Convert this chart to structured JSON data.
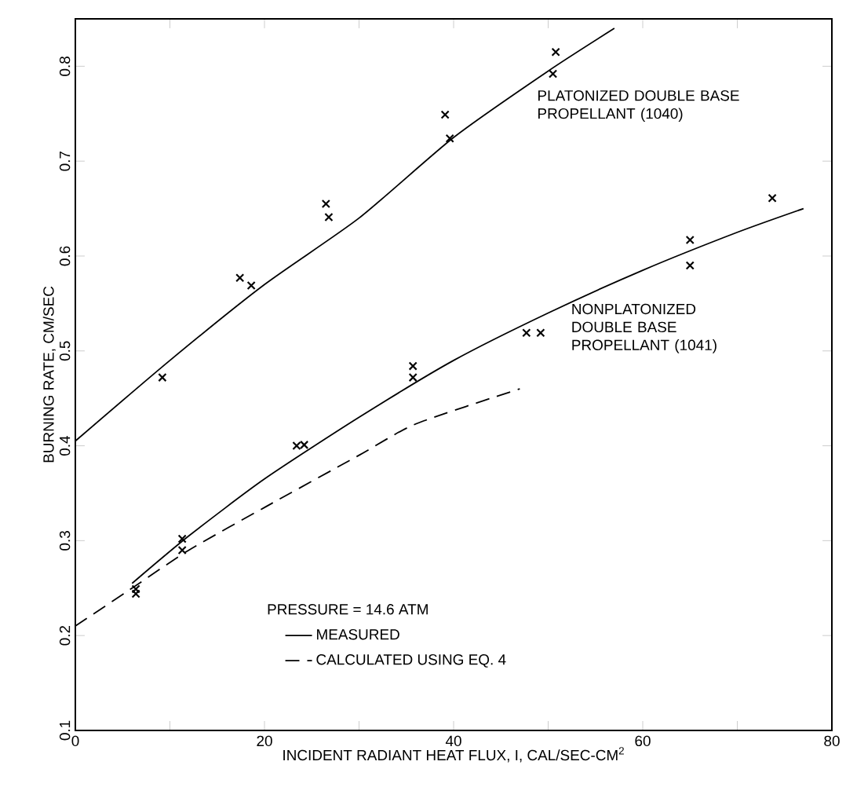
{
  "chart_data": {
    "type": "scatter",
    "xlabel": "INCIDENT RADIANT HEAT FLUX, I, CAL/SEC-CM$^{2}$",
    "ylabel": "BURNING RATE, CM/SEC",
    "legend_title": "PRESSURE = 14.6 ATM",
    "legend": "bottom",
    "grid": false,
    "xlim": [
      0,
      80
    ],
    "ylim": [
      0.1,
      0.85
    ],
    "xticks": [
      0,
      {
        "value": 10,
        "label": null
      },
      20,
      {
        "value": 30,
        "label": null
      },
      40,
      {
        "value": 50,
        "label": null
      },
      60,
      {
        "value": 70,
        "label": null
      },
      80
    ],
    "yticks": [
      0.1,
      0.2,
      0.3,
      0.4,
      0.5,
      0.6,
      0.7,
      0.8
    ],
    "series": [
      {
        "type": "line",
        "name": "MEASURED",
        "color": "#000000",
        "line_style": "solid",
        "marker": "none",
        "x": [
          0,
          10,
          20,
          30,
          40,
          50,
          57
        ],
        "values": [
          0.405,
          0.49,
          0.57,
          0.64,
          0.725,
          0.795,
          0.84
        ]
      },
      {
        "type": "line",
        "color": "#000000",
        "line_style": "solid",
        "marker": "none",
        "x": [
          6,
          12,
          20,
          30,
          40,
          50,
          60,
          70,
          77
        ],
        "values": [
          0.255,
          0.305,
          0.365,
          0.43,
          0.49,
          0.54,
          0.585,
          0.625,
          0.65
        ]
      },
      {
        "type": "line",
        "name": "CALCULATED USING EQ. 4",
        "color": "#000000",
        "line_style": "dashed",
        "marker": "none",
        "x": [
          0,
          6,
          12,
          20,
          30,
          36,
          47
        ],
        "values": [
          0.21,
          0.25,
          0.29,
          0.335,
          0.39,
          0.423,
          0.46
        ]
      },
      {
        "color": "#000000",
        "marker": "cross",
        "x": [
          9.2,
          17.4,
          18.6,
          26.5,
          26.8,
          39.1,
          39.6,
          50.5,
          50.8
        ],
        "values": [
          0.472,
          0.577,
          0.569,
          0.655,
          0.641,
          0.749,
          0.724,
          0.792,
          0.815
        ]
      },
      {
        "color": "#000000",
        "marker": "cross",
        "x": [
          6.4,
          6.4,
          11.3,
          11.3,
          23.4,
          24.2,
          35.7,
          35.7,
          47.7,
          49.2,
          65,
          65,
          73.7
        ],
        "values": [
          0.249,
          0.244,
          0.302,
          0.29,
          0.4,
          0.401,
          0.484,
          0.472,
          0.519,
          0.519,
          0.617,
          0.59,
          0.661
        ]
      }
    ],
    "annotations": [
      "PLATONIZED DOUBLE BASE PROPELLANT (1040)",
      "NONPLATONIZED DOUBLE BASE PROPELLANT (1041)"
    ]
  }
}
